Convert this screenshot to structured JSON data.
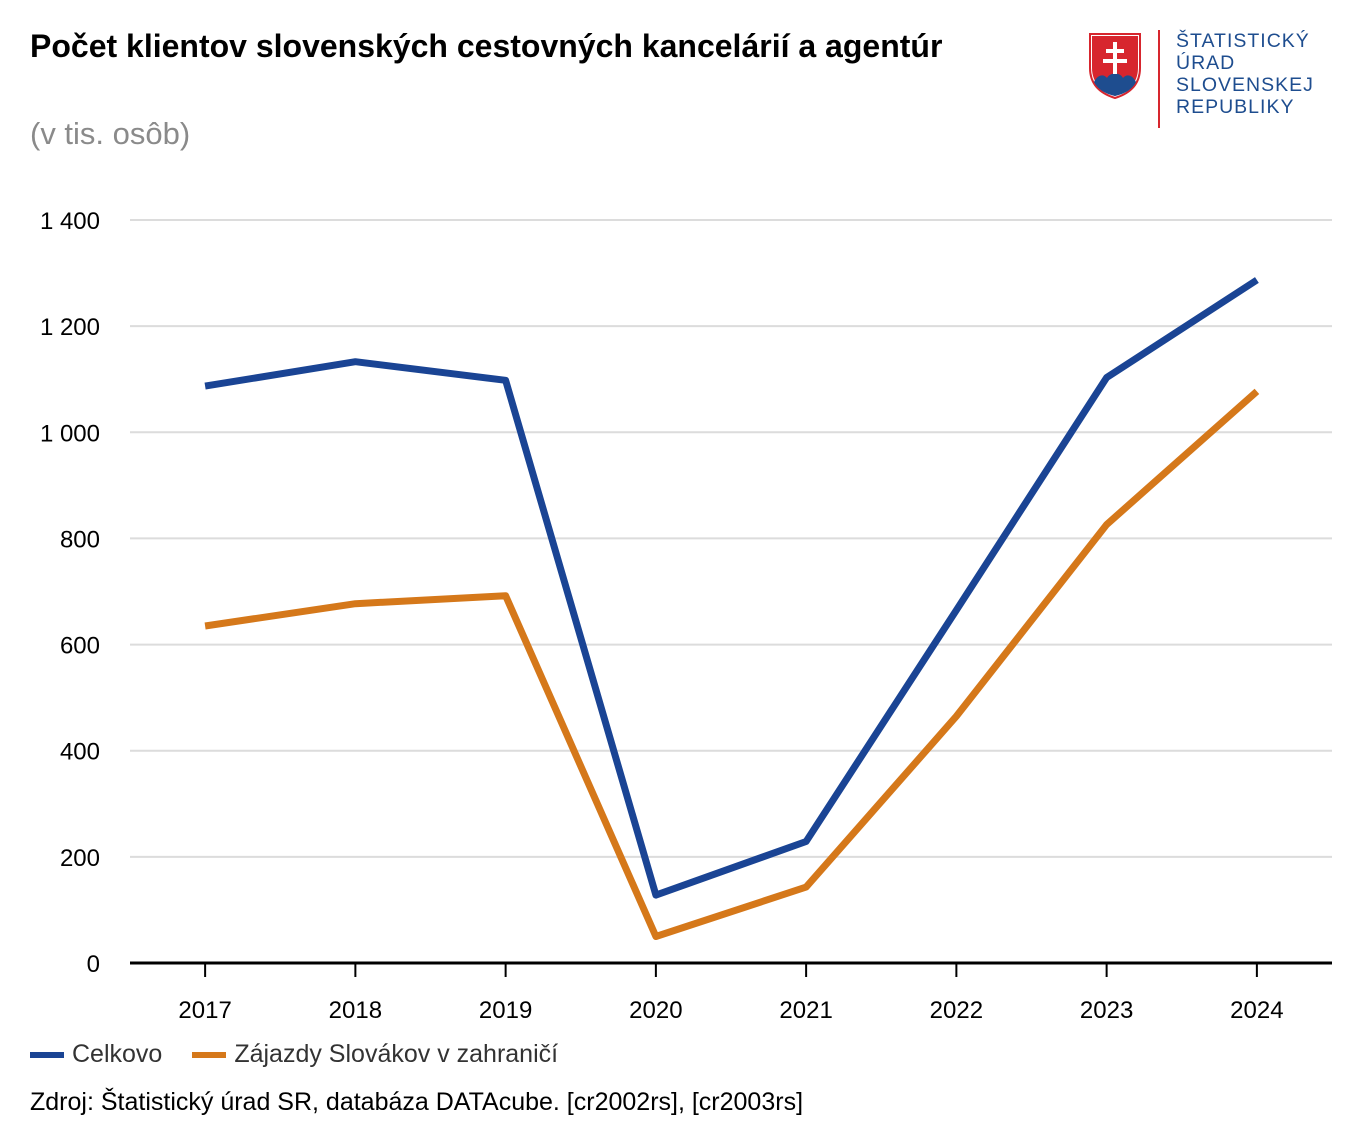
{
  "header": {
    "title": "Počet klientov slovenských cestovných kancelárií a agentúr",
    "subtitle": "(v tis. osôb)"
  },
  "logo": {
    "lines": [
      "ŠTATISTICKÝ",
      "ÚRAD",
      "SLOVENSKEJ",
      "REPUBLIKY"
    ],
    "text_color": "#1e4d8f",
    "accent_color": "#d7262e"
  },
  "chart_data": {
    "type": "line",
    "x": [
      "2017",
      "2018",
      "2019",
      "2020",
      "2021",
      "2022",
      "2023",
      "2024"
    ],
    "series": [
      {
        "name": "Celkovo",
        "color": "#1a4494",
        "values": [
          1087,
          1133,
          1098,
          128,
          229,
          665,
          1103,
          1287
        ]
      },
      {
        "name": "Zájazdy Slovákov v zahraničí",
        "color": "#d5781a",
        "values": [
          635,
          677,
          692,
          50,
          143,
          465,
          826,
          1077
        ]
      }
    ],
    "ylim": [
      0,
      1400
    ],
    "yticks": [
      0,
      200,
      400,
      600,
      800,
      1000,
      1200,
      1400
    ],
    "ytick_labels": [
      "0",
      "200",
      "400",
      "600",
      "800",
      "1 000",
      "1 200",
      "1 400"
    ],
    "grid": true,
    "legend_position": "bottom-left"
  },
  "footer": {
    "source": "Zdroj: Štatistický úrad SR, databáza DATAcube. [cr2002rs], [cr2003rs]"
  }
}
